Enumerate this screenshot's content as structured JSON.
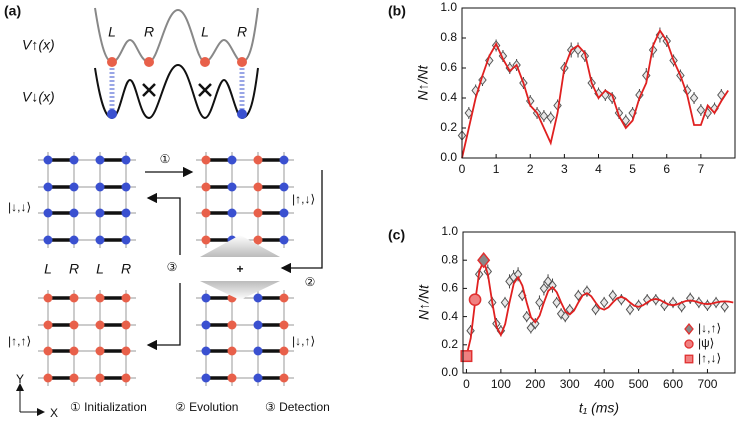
{
  "diagram": {
    "panel": "(a)",
    "potentials": [
      "V↑(x)",
      "V↓(x)"
    ],
    "wells": [
      "L",
      "R",
      "L",
      "R"
    ],
    "lattice_wells": [
      "L",
      "R",
      "L",
      "R"
    ],
    "states": [
      "|↓,↓⟩",
      "|↑,↓⟩",
      "|↑,↑⟩",
      "|↓,↑⟩"
    ],
    "step_marks": [
      "①",
      "②",
      "③"
    ],
    "steps": [
      "① Initialization",
      "② Evolution",
      "③ Detection"
    ],
    "axes": [
      "Y",
      "X"
    ],
    "plus": "+"
  },
  "chart_data": [
    {
      "type": "line",
      "title": "(b)",
      "ylabel": "N↑/Nt",
      "xlim": [
        0,
        8
      ],
      "xticks": [
        0,
        1,
        2,
        3,
        4,
        5,
        6,
        7
      ],
      "ylim": [
        0,
        1.0
      ],
      "yticks": [
        {
          "value": 0,
          "label": "0.0"
        },
        0.2,
        0.4,
        0.6,
        0.8,
        {
          "value": 1,
          "label": "1.0"
        }
      ],
      "series": [
        {
          "color": "#555555",
          "marker": "diamond",
          "x": [
            0,
            0.2,
            0.4,
            0.6,
            0.8,
            1.0,
            1.2,
            1.4,
            1.6,
            1.8,
            2.0,
            2.2,
            2.4,
            2.6,
            2.8,
            3.0,
            3.2,
            3.4,
            3.6,
            3.8,
            4.0,
            4.2,
            4.4,
            4.6,
            4.8,
            5.0,
            5.2,
            5.4,
            5.6,
            5.8,
            6.0,
            6.2,
            6.4,
            6.6,
            6.8,
            7.0,
            7.2,
            7.4,
            7.6
          ],
          "values": [
            0.15,
            0.3,
            0.45,
            0.52,
            0.65,
            0.75,
            0.68,
            0.6,
            0.62,
            0.5,
            0.38,
            0.3,
            0.28,
            0.27,
            0.35,
            0.6,
            0.72,
            0.72,
            0.68,
            0.5,
            0.43,
            0.42,
            0.4,
            0.3,
            0.25,
            0.3,
            0.42,
            0.55,
            0.72,
            0.82,
            0.78,
            0.65,
            0.55,
            0.45,
            0.4,
            0.32,
            0.3,
            0.33,
            0.42
          ],
          "errors": [
            0.04,
            0.04,
            0.04,
            0.04,
            0.04,
            0.04,
            0.04,
            0.04,
            0.04,
            0.04,
            0.04,
            0.04,
            0.04,
            0.04,
            0.04,
            0.04,
            0.05,
            0.05,
            0.04,
            0.04,
            0.04,
            0.04,
            0.04,
            0.04,
            0.04,
            0.04,
            0.04,
            0.05,
            0.05,
            0.05,
            0.04,
            0.04,
            0.04,
            0.04,
            0.04,
            0.04,
            0.04,
            0.04,
            0.04
          ]
        },
        {
          "color": "#e02020",
          "marker": "none",
          "x": [
            0,
            0.2,
            0.4,
            0.6,
            0.8,
            1.0,
            1.2,
            1.4,
            1.6,
            1.8,
            2.0,
            2.2,
            2.4,
            2.6,
            2.8,
            3.0,
            3.2,
            3.4,
            3.6,
            3.8,
            4.0,
            4.2,
            4.4,
            4.6,
            4.8,
            5.0,
            5.2,
            5.4,
            5.6,
            5.8,
            6.0,
            6.2,
            6.4,
            6.6,
            6.8,
            7.0,
            7.2,
            7.4,
            7.6,
            7.8
          ],
          "values": [
            0.0,
            0.2,
            0.4,
            0.55,
            0.68,
            0.76,
            0.66,
            0.58,
            0.62,
            0.5,
            0.35,
            0.3,
            0.2,
            0.1,
            0.3,
            0.6,
            0.72,
            0.75,
            0.7,
            0.5,
            0.4,
            0.45,
            0.42,
            0.28,
            0.2,
            0.25,
            0.4,
            0.5,
            0.75,
            0.85,
            0.78,
            0.65,
            0.55,
            0.42,
            0.22,
            0.22,
            0.35,
            0.3,
            0.38,
            0.45
          ]
        }
      ]
    },
    {
      "type": "line",
      "title": "(c)",
      "ylabel": "N↑/Nt",
      "xlabel": "t₁ (ms)",
      "xlim": [
        -10,
        780
      ],
      "xticks": [
        0,
        100,
        200,
        300,
        400,
        500,
        600,
        700
      ],
      "ylim": [
        0,
        1.0
      ],
      "yticks": [
        {
          "value": 0,
          "label": "0.0"
        },
        0.2,
        0.4,
        0.6,
        0.8,
        {
          "value": 1,
          "label": "1.0"
        }
      ],
      "legend": "lower right",
      "series": [
        {
          "color": "#555555",
          "marker": "diamond",
          "x": [
            0,
            12,
            25,
            37,
            50,
            62,
            75,
            87,
            100,
            112,
            125,
            137,
            150,
            162,
            175,
            187,
            200,
            212,
            225,
            237,
            250,
            262,
            275,
            287,
            300,
            325,
            350,
            375,
            400,
            425,
            450,
            475,
            500,
            525,
            550,
            575,
            600,
            625,
            650,
            675,
            700,
            725,
            750
          ],
          "values": [
            0.12,
            0.3,
            0.52,
            0.7,
            0.8,
            0.72,
            0.5,
            0.35,
            0.3,
            0.5,
            0.65,
            0.68,
            0.7,
            0.55,
            0.4,
            0.32,
            0.35,
            0.5,
            0.6,
            0.65,
            0.62,
            0.5,
            0.42,
            0.4,
            0.45,
            0.55,
            0.58,
            0.45,
            0.5,
            0.55,
            0.52,
            0.45,
            0.48,
            0.52,
            0.52,
            0.48,
            0.5,
            0.47,
            0.53,
            0.5,
            0.48,
            0.5,
            0.47
          ],
          "errors": [
            0.04,
            0.04,
            0.04,
            0.04,
            0.05,
            0.05,
            0.04,
            0.04,
            0.04,
            0.04,
            0.05,
            0.05,
            0.05,
            0.04,
            0.04,
            0.04,
            0.04,
            0.05,
            0.05,
            0.05,
            0.05,
            0.04,
            0.04,
            0.04,
            0.04,
            0.04,
            0.04,
            0.04,
            0.04,
            0.04,
            0.04,
            0.04,
            0.04,
            0.04,
            0.04,
            0.04,
            0.04,
            0.04,
            0.04,
            0.04,
            0.04,
            0.04,
            0.04
          ]
        },
        {
          "color": "#e02020",
          "marker": "none",
          "x": [
            0,
            12.5,
            25,
            37.5,
            50,
            62.5,
            75,
            87.5,
            100,
            112.5,
            125,
            137.5,
            150,
            162.5,
            175,
            187.5,
            200,
            212.5,
            225,
            237.5,
            250,
            262.5,
            275,
            287.5,
            300,
            312.5,
            325,
            337.5,
            350,
            362.5,
            375,
            387.5,
            400,
            412.5,
            425,
            437.5,
            450,
            462.5,
            475,
            487.5,
            500,
            512.5,
            525,
            537.5,
            550,
            562.5,
            575,
            587.5,
            600,
            612.5,
            625,
            637.5,
            650,
            662.5,
            675,
            687.5,
            700,
            712.5,
            725,
            737.5,
            750,
            762.5,
            775
          ],
          "values": [
            0.12,
            0.248,
            0.5,
            0.723,
            0.796,
            0.697,
            0.5,
            0.327,
            0.27,
            0.347,
            0.5,
            0.635,
            0.679,
            0.619,
            0.5,
            0.395,
            0.36,
            0.407,
            0.5,
            0.582,
            0.609,
            0.572,
            0.5,
            0.436,
            0.415,
            0.443,
            0.5,
            0.55,
            0.566,
            0.544,
            0.5,
            0.461,
            0.449,
            0.466,
            0.5,
            0.53,
            0.54,
            0.527,
            0.5,
            0.477,
            0.469,
            0.48,
            0.5,
            0.519,
            0.525,
            0.517,
            0.5,
            0.486,
            0.481,
            0.487,
            0.5,
            0.511,
            0.514,
            0.51,
            0.5,
            0.492,
            0.489,
            0.492,
            0.5,
            0.506,
            0.508,
            0.506,
            0.5
          ]
        },
        {
          "name": "|↓,↑⟩",
          "color": "#888888",
          "edge": "#e03030",
          "marker": "diamond",
          "x": [
            50
          ],
          "values": [
            0.8
          ]
        },
        {
          "name": "|ψ⟩",
          "color": "#f08080",
          "edge": "#e03030",
          "marker": "circle",
          "x": [
            25
          ],
          "values": [
            0.52
          ]
        },
        {
          "name": "|↑,↓⟩",
          "color": "#f08080",
          "edge": "#e03030",
          "marker": "square",
          "x": [
            0
          ],
          "values": [
            0.12
          ]
        }
      ]
    }
  ]
}
